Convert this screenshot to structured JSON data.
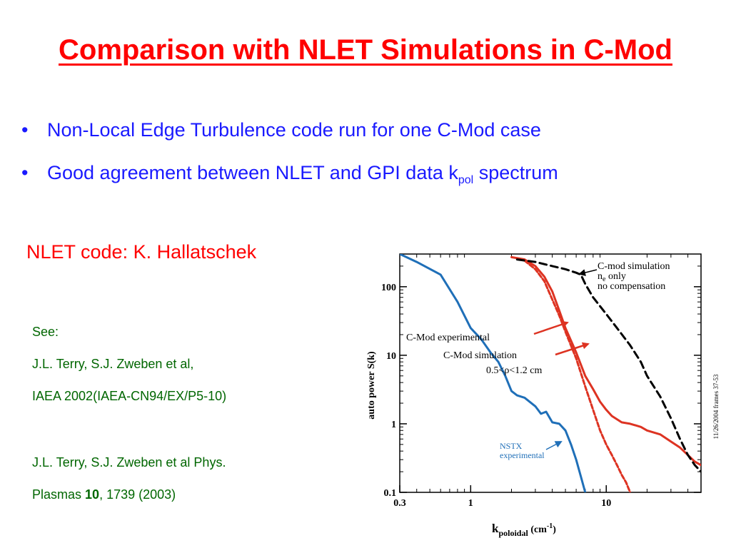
{
  "slide": {
    "title": "Comparison with NLET Simulations in C-Mod",
    "bullets": [
      {
        "text": "Non-Local Edge Turbulence code run for one C-Mod case",
        "sub": "",
        "after": ""
      },
      {
        "text": "Good agreement between NLET and GPI data k",
        "sub": "pol",
        "after": " spectrum"
      }
    ],
    "credit": "NLET code:  K. Hallatschek",
    "refs": {
      "see": "See:",
      "ref1_line1": "J.L. Terry, S.J. Zweben et al,",
      "ref1_line2": "IAEA 2002(IAEA-CN94/EX/P5-10)",
      "ref2_line1": "J.L. Terry, S.J. Zweben et al Phys.",
      "ref2_line2_pre": "Plasmas ",
      "ref2_line2_bold": "10",
      "ref2_line2_post": ", 1739 (2003)"
    }
  },
  "chart_data": {
    "type": "line",
    "xscale": "log",
    "yscale": "log",
    "xlim": [
      0.3,
      50
    ],
    "ylim": [
      0.1,
      300
    ],
    "xlabel": {
      "main": "k",
      "sub": "poloidal",
      "unit": " (cm",
      "sup": "-1",
      "close": ")"
    },
    "ylabel": "auto power S(k)",
    "xticks": [
      {
        "v": 0.3,
        "label": "0.3"
      },
      {
        "v": 1,
        "label": "1"
      },
      {
        "v": 10,
        "label": "10"
      }
    ],
    "yticks": [
      {
        "v": 0.1,
        "label": "0.1"
      },
      {
        "v": 1,
        "label": "1"
      },
      {
        "v": 10,
        "label": "10"
      },
      {
        "v": 100,
        "label": "100"
      }
    ],
    "side_label": "11/26/2004 frames 37-53",
    "annotations": {
      "cmod_sim_ne": [
        "C-mod simulation",
        "n",
        "e",
        " only",
        "no compensation"
      ],
      "cmod_exp": "C-Mod experimental",
      "cmod_sim": "C-Mod simulation",
      "rho_range": "0.5<ρ<1.2 cm",
      "nstx": [
        "NSTX",
        "experimental"
      ]
    },
    "colors": {
      "nstx": "#1f6fb8",
      "cmod_exp": "#dd3322",
      "cmod_sim": "#dd3322",
      "cmod_sim_ne": "#000000"
    },
    "series": [
      {
        "name": "NSTX experimental",
        "color": "#1f6fb8",
        "dash": "none",
        "points": [
          [
            0.3,
            300
          ],
          [
            0.4,
            230
          ],
          [
            0.6,
            150
          ],
          [
            0.8,
            60
          ],
          [
            1.0,
            25
          ],
          [
            1.2,
            17
          ],
          [
            1.4,
            11
          ],
          [
            1.6,
            8
          ],
          [
            1.8,
            5
          ],
          [
            2.0,
            3
          ],
          [
            2.2,
            2.6
          ],
          [
            2.5,
            2.4
          ],
          [
            3.0,
            1.8
          ],
          [
            3.3,
            1.4
          ],
          [
            3.6,
            1.5
          ],
          [
            4.0,
            1.05
          ],
          [
            4.5,
            1.0
          ],
          [
            5.0,
            0.8
          ],
          [
            5.5,
            0.5
          ],
          [
            6.0,
            0.3
          ],
          [
            6.5,
            0.17
          ],
          [
            7.0,
            0.1
          ]
        ]
      },
      {
        "name": "C-Mod experimental",
        "color": "#dd3322",
        "dash": "none",
        "points": [
          [
            2.0,
            270
          ],
          [
            2.5,
            250
          ],
          [
            3.0,
            200
          ],
          [
            3.5,
            140
          ],
          [
            4.0,
            85
          ],
          [
            4.5,
            45
          ],
          [
            5.0,
            25
          ],
          [
            6.0,
            11
          ],
          [
            7.0,
            5
          ],
          [
            8.0,
            3.2
          ],
          [
            9.0,
            2.1
          ],
          [
            10,
            1.6
          ],
          [
            11,
            1.3
          ],
          [
            13,
            1.05
          ],
          [
            15,
            1.0
          ],
          [
            18,
            0.9
          ],
          [
            20,
            0.8
          ],
          [
            25,
            0.7
          ],
          [
            30,
            0.55
          ],
          [
            35,
            0.45
          ],
          [
            40,
            0.35
          ],
          [
            45,
            0.28
          ],
          [
            50,
            0.25
          ]
        ]
      },
      {
        "name": "C-Mod simulation",
        "color": "#dd3322",
        "dash": "6,3",
        "points": [
          [
            2.5,
            240
          ],
          [
            3.0,
            180
          ],
          [
            3.5,
            120
          ],
          [
            4.0,
            65
          ],
          [
            4.5,
            38
          ],
          [
            5.0,
            22
          ],
          [
            6.0,
            9
          ],
          [
            7.0,
            3.5
          ],
          [
            8.0,
            1.6
          ],
          [
            9.0,
            0.8
          ],
          [
            10,
            0.5
          ],
          [
            11,
            0.35
          ],
          [
            12,
            0.25
          ],
          [
            13,
            0.18
          ],
          [
            14,
            0.14
          ],
          [
            15,
            0.1
          ]
        ]
      },
      {
        "name": "C-mod simulation n_e only no compensation",
        "color": "#000000",
        "dash": "10,6",
        "points": [
          [
            2.2,
            250
          ],
          [
            3.0,
            230
          ],
          [
            4.0,
            200
          ],
          [
            5.0,
            180
          ],
          [
            6.0,
            160
          ],
          [
            6.5,
            150
          ],
          [
            7.0,
            110
          ],
          [
            8.0,
            70
          ],
          [
            10,
            40
          ],
          [
            12,
            25
          ],
          [
            15,
            14
          ],
          [
            18,
            8
          ],
          [
            20,
            5
          ],
          [
            25,
            2.5
          ],
          [
            30,
            1.2
          ],
          [
            35,
            0.6
          ],
          [
            40,
            0.35
          ],
          [
            45,
            0.25
          ],
          [
            50,
            0.2
          ]
        ]
      }
    ]
  }
}
